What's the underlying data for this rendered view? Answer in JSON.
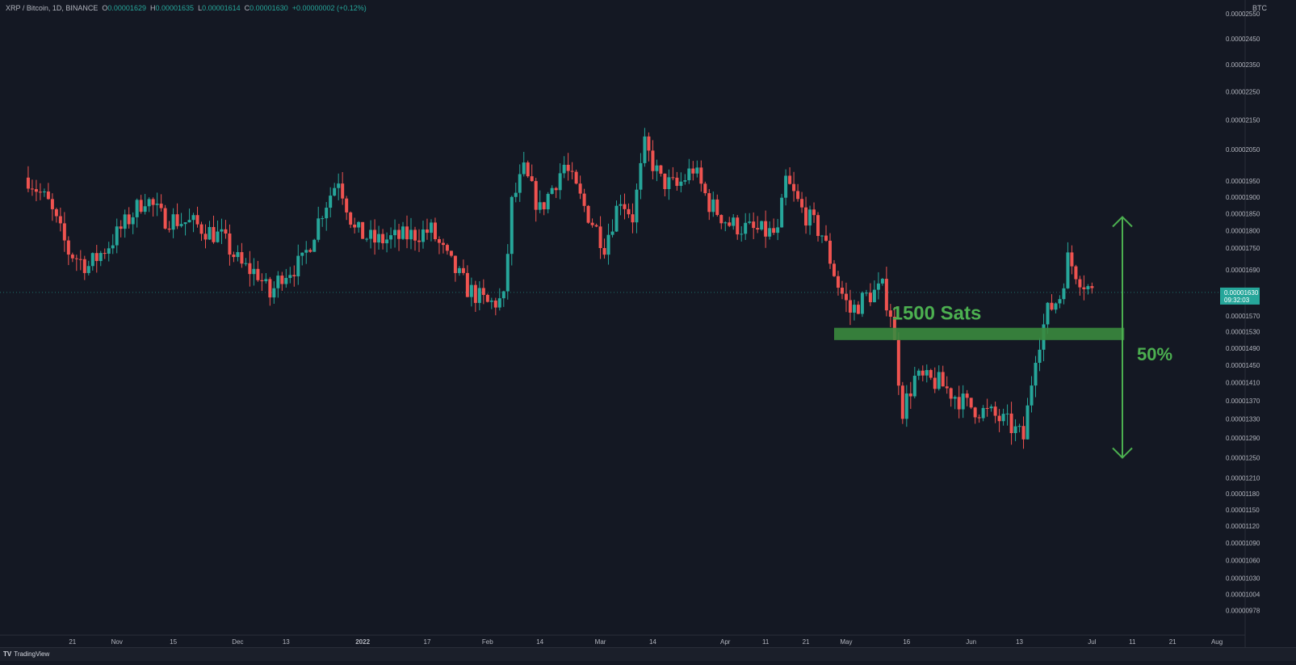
{
  "header": {
    "symbol": "XRP / Bitcoin, 1D, BINANCE",
    "o_label": "O",
    "o_value": "0.00001629",
    "h_label": "H",
    "h_value": "0.00001635",
    "l_label": "L",
    "l_value": "0.00001614",
    "c_label": "C",
    "c_value": "0.00001630",
    "change": "+0.00000002 (+0.12%)",
    "unit": "BTC"
  },
  "footer": {
    "brand": "TradingView",
    "logo_mark": "TV"
  },
  "price_badge": {
    "price": "0.00001630",
    "countdown": "09:32:03"
  },
  "annotations": {
    "support_label": "1500 Sats",
    "move_label": "50%"
  },
  "colors": {
    "background": "#141823",
    "up": "#26a69a",
    "down": "#ef5350",
    "annotation": "#4caf50",
    "support_band": "#3a8a3e",
    "text": "#b2b5be"
  },
  "chart_data": {
    "type": "candlestick",
    "title": "",
    "xlabel": "",
    "ylabel": "",
    "y_scale": "log",
    "ylim": [
      9.5e-06,
      2.58e-05
    ],
    "grid": false,
    "y_ticks": [
      "0.00002550",
      "0.00002450",
      "0.00002350",
      "0.00002250",
      "0.00002150",
      "0.00002050",
      "0.00001950",
      "0.00001900",
      "0.00001850",
      "0.00001800",
      "0.00001750",
      "0.00001690",
      "0.00001570",
      "0.00001530",
      "0.00001490",
      "0.00001450",
      "0.00001410",
      "0.00001370",
      "0.00001330",
      "0.00001290",
      "0.00001250",
      "0.00001210",
      "0.00001180",
      "0.00001150",
      "0.00001120",
      "0.00001090",
      "0.00001060",
      "0.00001030",
      "0.00001004",
      "0.00000978"
    ],
    "x_ticks": [
      {
        "label": "21",
        "date": "2021-10-21"
      },
      {
        "label": "Nov",
        "date": "2021-11-01"
      },
      {
        "label": "15",
        "date": "2021-11-15"
      },
      {
        "label": "Dec",
        "date": "2021-12-01"
      },
      {
        "label": "13",
        "date": "2021-12-13"
      },
      {
        "label": "2022",
        "date": "2022-01-01"
      },
      {
        "label": "17",
        "date": "2022-01-17"
      },
      {
        "label": "Feb",
        "date": "2022-02-01"
      },
      {
        "label": "14",
        "date": "2022-02-14"
      },
      {
        "label": "Mar",
        "date": "2022-03-01"
      },
      {
        "label": "14",
        "date": "2022-03-14"
      },
      {
        "label": "Apr",
        "date": "2022-04-01"
      },
      {
        "label": "11",
        "date": "2022-04-11"
      },
      {
        "label": "21",
        "date": "2022-04-21"
      },
      {
        "label": "May",
        "date": "2022-05-01"
      },
      {
        "label": "16",
        "date": "2022-05-16"
      },
      {
        "label": "Jun",
        "date": "2022-06-01"
      },
      {
        "label": "13",
        "date": "2022-06-13"
      },
      {
        "label": "Jul",
        "date": "2022-07-01"
      },
      {
        "label": "11",
        "date": "2022-07-11"
      },
      {
        "label": "21",
        "date": "2022-07-21"
      },
      {
        "label": "Aug",
        "date": "2022-08-01"
      }
    ],
    "first_date": "2021-10-10",
    "last_date": "2022-07-01",
    "last_price": 1.63e-05,
    "support_band": [
      1.51e-05,
      1.54e-05
    ],
    "move_range": [
      1.25e-05,
      1.84e-05
    ],
    "close_path": [
      [
        "2021-10-10",
        1.96e-05
      ],
      [
        "2021-10-15",
        1.88e-05
      ],
      [
        "2021-10-20",
        1.74e-05
      ],
      [
        "2021-10-25",
        1.7e-05
      ],
      [
        "2021-10-30",
        1.76e-05
      ],
      [
        "2021-11-05",
        1.85e-05
      ],
      [
        "2021-11-08",
        1.9e-05
      ],
      [
        "2021-11-12",
        1.84e-05
      ],
      [
        "2021-11-20",
        1.82e-05
      ],
      [
        "2021-11-27",
        1.78e-05
      ],
      [
        "2021-12-02",
        1.7e-05
      ],
      [
        "2021-12-06",
        1.68e-05
      ],
      [
        "2021-12-09",
        1.62e-05
      ],
      [
        "2021-12-12",
        1.68e-05
      ],
      [
        "2021-12-17",
        1.71e-05
      ],
      [
        "2021-12-22",
        1.86e-05
      ],
      [
        "2021-12-26",
        1.96e-05
      ],
      [
        "2021-12-30",
        1.8e-05
      ],
      [
        "2022-01-04",
        1.77e-05
      ],
      [
        "2022-01-10",
        1.78e-05
      ],
      [
        "2022-01-18",
        1.8e-05
      ],
      [
        "2022-01-22",
        1.72e-05
      ],
      [
        "2022-01-27",
        1.64e-05
      ],
      [
        "2022-02-01",
        1.6e-05
      ],
      [
        "2022-02-05",
        1.61e-05
      ],
      [
        "2022-02-07",
        1.88e-05
      ],
      [
        "2022-02-10",
        1.98e-05
      ],
      [
        "2022-02-14",
        1.86e-05
      ],
      [
        "2022-02-20",
        2e-05
      ],
      [
        "2022-02-25",
        1.87e-05
      ],
      [
        "2022-03-02",
        1.76e-05
      ],
      [
        "2022-03-06",
        1.9e-05
      ],
      [
        "2022-03-09",
        1.84e-05
      ],
      [
        "2022-03-12",
        2.06e-05
      ],
      [
        "2022-03-16",
        1.95e-05
      ],
      [
        "2022-03-20",
        1.93e-05
      ],
      [
        "2022-03-24",
        1.99e-05
      ],
      [
        "2022-03-28",
        1.88e-05
      ],
      [
        "2022-04-02",
        1.82e-05
      ],
      [
        "2022-04-08",
        1.8e-05
      ],
      [
        "2022-04-14",
        1.79e-05
      ],
      [
        "2022-04-16",
        1.95e-05
      ],
      [
        "2022-04-20",
        1.86e-05
      ],
      [
        "2022-04-25",
        1.79e-05
      ],
      [
        "2022-04-29",
        1.65e-05
      ],
      [
        "2022-05-02",
        1.58e-05
      ],
      [
        "2022-05-06",
        1.62e-05
      ],
      [
        "2022-05-10",
        1.64e-05
      ],
      [
        "2022-05-12",
        1.58e-05
      ],
      [
        "2022-05-15",
        1.35e-05
      ],
      [
        "2022-05-18",
        1.42e-05
      ],
      [
        "2022-05-24",
        1.41e-05
      ],
      [
        "2022-05-31",
        1.36e-05
      ],
      [
        "2022-06-06",
        1.34e-05
      ],
      [
        "2022-06-10",
        1.32e-05
      ],
      [
        "2022-06-14",
        1.29e-05
      ],
      [
        "2022-06-17",
        1.48e-05
      ],
      [
        "2022-06-20",
        1.58e-05
      ],
      [
        "2022-06-23",
        1.62e-05
      ],
      [
        "2022-06-25",
        1.72e-05
      ],
      [
        "2022-06-28",
        1.67e-05
      ],
      [
        "2022-07-01",
        1.63e-05
      ]
    ]
  }
}
